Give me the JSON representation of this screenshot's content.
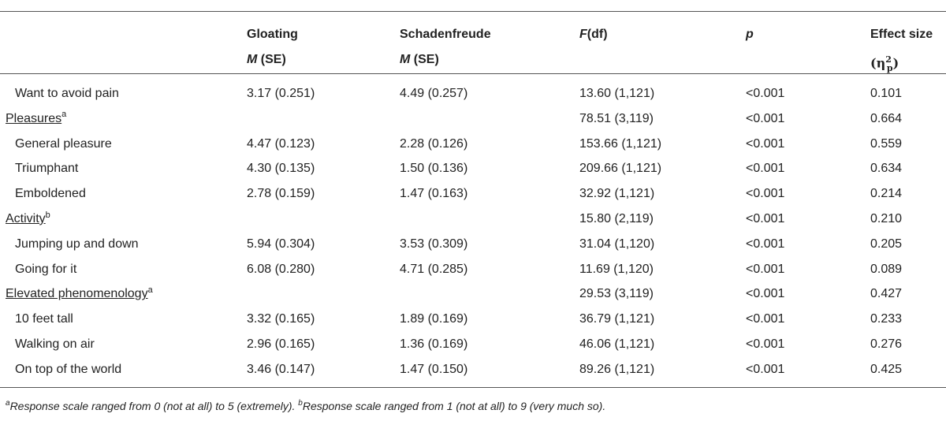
{
  "header": {
    "col_gloating": "Gloating",
    "col_gloating_sub_m": "M",
    "col_gloating_sub_rest": " (SE)",
    "col_schadenfreude": "Schadenfreude",
    "col_schadenfreude_sub_m": "M",
    "col_schadenfreude_sub_rest": " (SE)",
    "col_f": "F",
    "col_f_rest": "(df)",
    "col_p": "p",
    "col_effect": "Effect size",
    "col_effect_open": "(",
    "col_effect_eta": "η",
    "col_effect_sub": "p",
    "col_effect_sup": "2",
    "col_effect_close": ")"
  },
  "rows": [
    {
      "label": "Want to avoid pain",
      "gloating": "3.17 (0.251)",
      "schadenfreude": "4.49 (0.257)",
      "f": "13.60 (1,121)",
      "p": "<0.001",
      "effect": "0.101",
      "group": false,
      "note": ""
    },
    {
      "label": "Pleasures",
      "gloating": "",
      "schadenfreude": "",
      "f": "78.51 (3,119)",
      "p": "<0.001",
      "effect": "0.664",
      "group": true,
      "note": "a"
    },
    {
      "label": "General pleasure",
      "gloating": "4.47 (0.123)",
      "schadenfreude": "2.28 (0.126)",
      "f": "153.66 (1,121)",
      "p": "<0.001",
      "effect": "0.559",
      "group": false,
      "note": ""
    },
    {
      "label": "Triumphant",
      "gloating": "4.30 (0.135)",
      "schadenfreude": "1.50 (0.136)",
      "f": "209.66 (1,121)",
      "p": "<0.001",
      "effect": "0.634",
      "group": false,
      "note": ""
    },
    {
      "label": "Emboldened",
      "gloating": "2.78 (0.159)",
      "schadenfreude": "1.47 (0.163)",
      "f": "32.92 (1,121)",
      "p": "<0.001",
      "effect": "0.214",
      "group": false,
      "note": ""
    },
    {
      "label": "Activity",
      "gloating": "",
      "schadenfreude": "",
      "f": "15.80 (2,119)",
      "p": "<0.001",
      "effect": "0.210",
      "group": true,
      "note": "b"
    },
    {
      "label": "Jumping up and down",
      "gloating": "5.94 (0.304)",
      "schadenfreude": "3.53 (0.309)",
      "f": "31.04 (1,120)",
      "p": "<0.001",
      "effect": "0.205",
      "group": false,
      "note": ""
    },
    {
      "label": "Going for it",
      "gloating": "6.08 (0.280)",
      "schadenfreude": "4.71 (0.285)",
      "f": "11.69 (1,120)",
      "p": "<0.001",
      "effect": "0.089",
      "group": false,
      "note": ""
    },
    {
      "label": "Elevated phenomenology",
      "gloating": "",
      "schadenfreude": "",
      "f": "29.53 (3,119)",
      "p": "<0.001",
      "effect": "0.427",
      "group": true,
      "note": "a"
    },
    {
      "label": "10 feet tall",
      "gloating": "3.32 (0.165)",
      "schadenfreude": "1.89 (0.169)",
      "f": "36.79 (1,121)",
      "p": "<0.001",
      "effect": "0.233",
      "group": false,
      "note": ""
    },
    {
      "label": "Walking on air",
      "gloating": "2.96 (0.165)",
      "schadenfreude": "1.36 (0.169)",
      "f": "46.06 (1,121)",
      "p": "<0.001",
      "effect": "0.276",
      "group": false,
      "note": ""
    },
    {
      "label": "On top of the world",
      "gloating": "3.46 (0.147)",
      "schadenfreude": "1.47 (0.150)",
      "f": "89.26 (1,121)",
      "p": "<0.001",
      "effect": "0.425",
      "group": false,
      "note": ""
    }
  ],
  "footnote": {
    "mark_a": "a",
    "text_a": "Response scale ranged from 0 (not at all) to 5 (extremely). ",
    "mark_b": "b",
    "text_b": "Response scale ranged from 1 (not at all) to 9 (very much so)."
  }
}
